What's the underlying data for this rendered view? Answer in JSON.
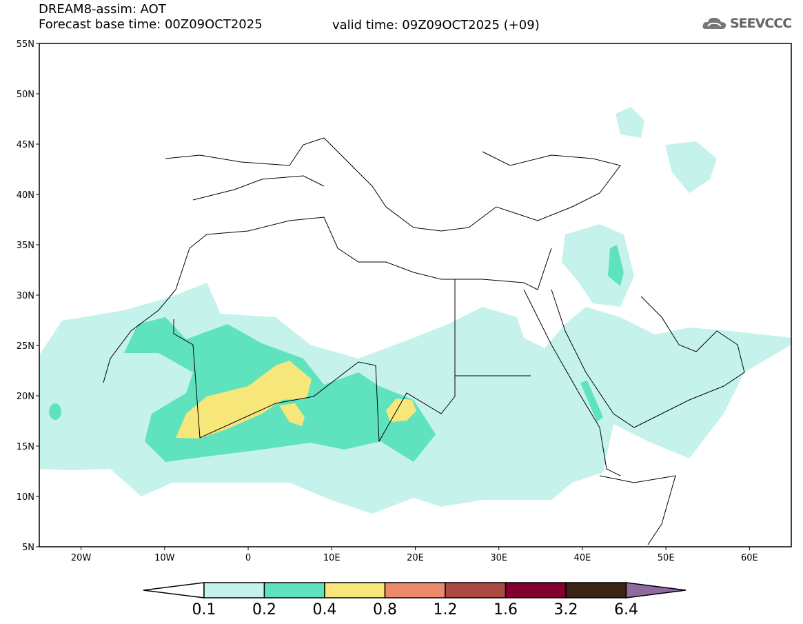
{
  "header": {
    "model_title": "DREAM8-assim: AOT",
    "base_time": "Forecast base time: 00Z09OCT2025",
    "valid_time": "valid time: 09Z09OCT2025 (+09)",
    "logo_text": "SEEVCCC"
  },
  "map": {
    "lat_labels": [
      "55N",
      "50N",
      "45N",
      "40N",
      "35N",
      "30N",
      "25N",
      "20N",
      "15N",
      "10N",
      "5N"
    ],
    "lon_labels": [
      "20W",
      "10W",
      "0",
      "10E",
      "20E",
      "30E",
      "40E",
      "50E",
      "60E"
    ],
    "lon_range": [
      -25,
      65
    ],
    "lat_range": [
      5,
      55
    ]
  },
  "colorbar": {
    "labels": [
      "0.1",
      "0.2",
      "0.4",
      "0.8",
      "1.2",
      "1.6",
      "3.2",
      "6.4"
    ],
    "colors": [
      "#ffffff",
      "#c6f2ec",
      "#5ee3be",
      "#f7e67a",
      "#ea8a6a",
      "#aa4a42",
      "#820030",
      "#3a2414",
      "#8e6a9e"
    ]
  }
}
